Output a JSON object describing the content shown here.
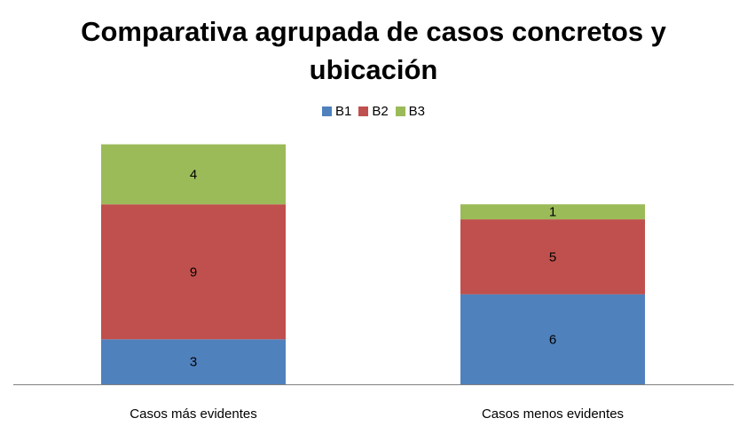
{
  "chart_data": {
    "type": "stacked-bar",
    "title": "Comparativa agrupada de casos concretos y ubicación",
    "categories": [
      "Casos más evidentes",
      "Casos menos evidentes"
    ],
    "series": [
      {
        "name": "B1",
        "color": "#4F81BD",
        "values": [
          3,
          6
        ]
      },
      {
        "name": "B2",
        "color": "#C0504D",
        "values": [
          9,
          5
        ]
      },
      {
        "name": "B3",
        "color": "#9BBB59",
        "values": [
          4,
          1
        ]
      }
    ],
    "legend_position": "top",
    "xlabel": "",
    "ylabel": "",
    "ylim": [
      0,
      16
    ],
    "grid": false
  }
}
